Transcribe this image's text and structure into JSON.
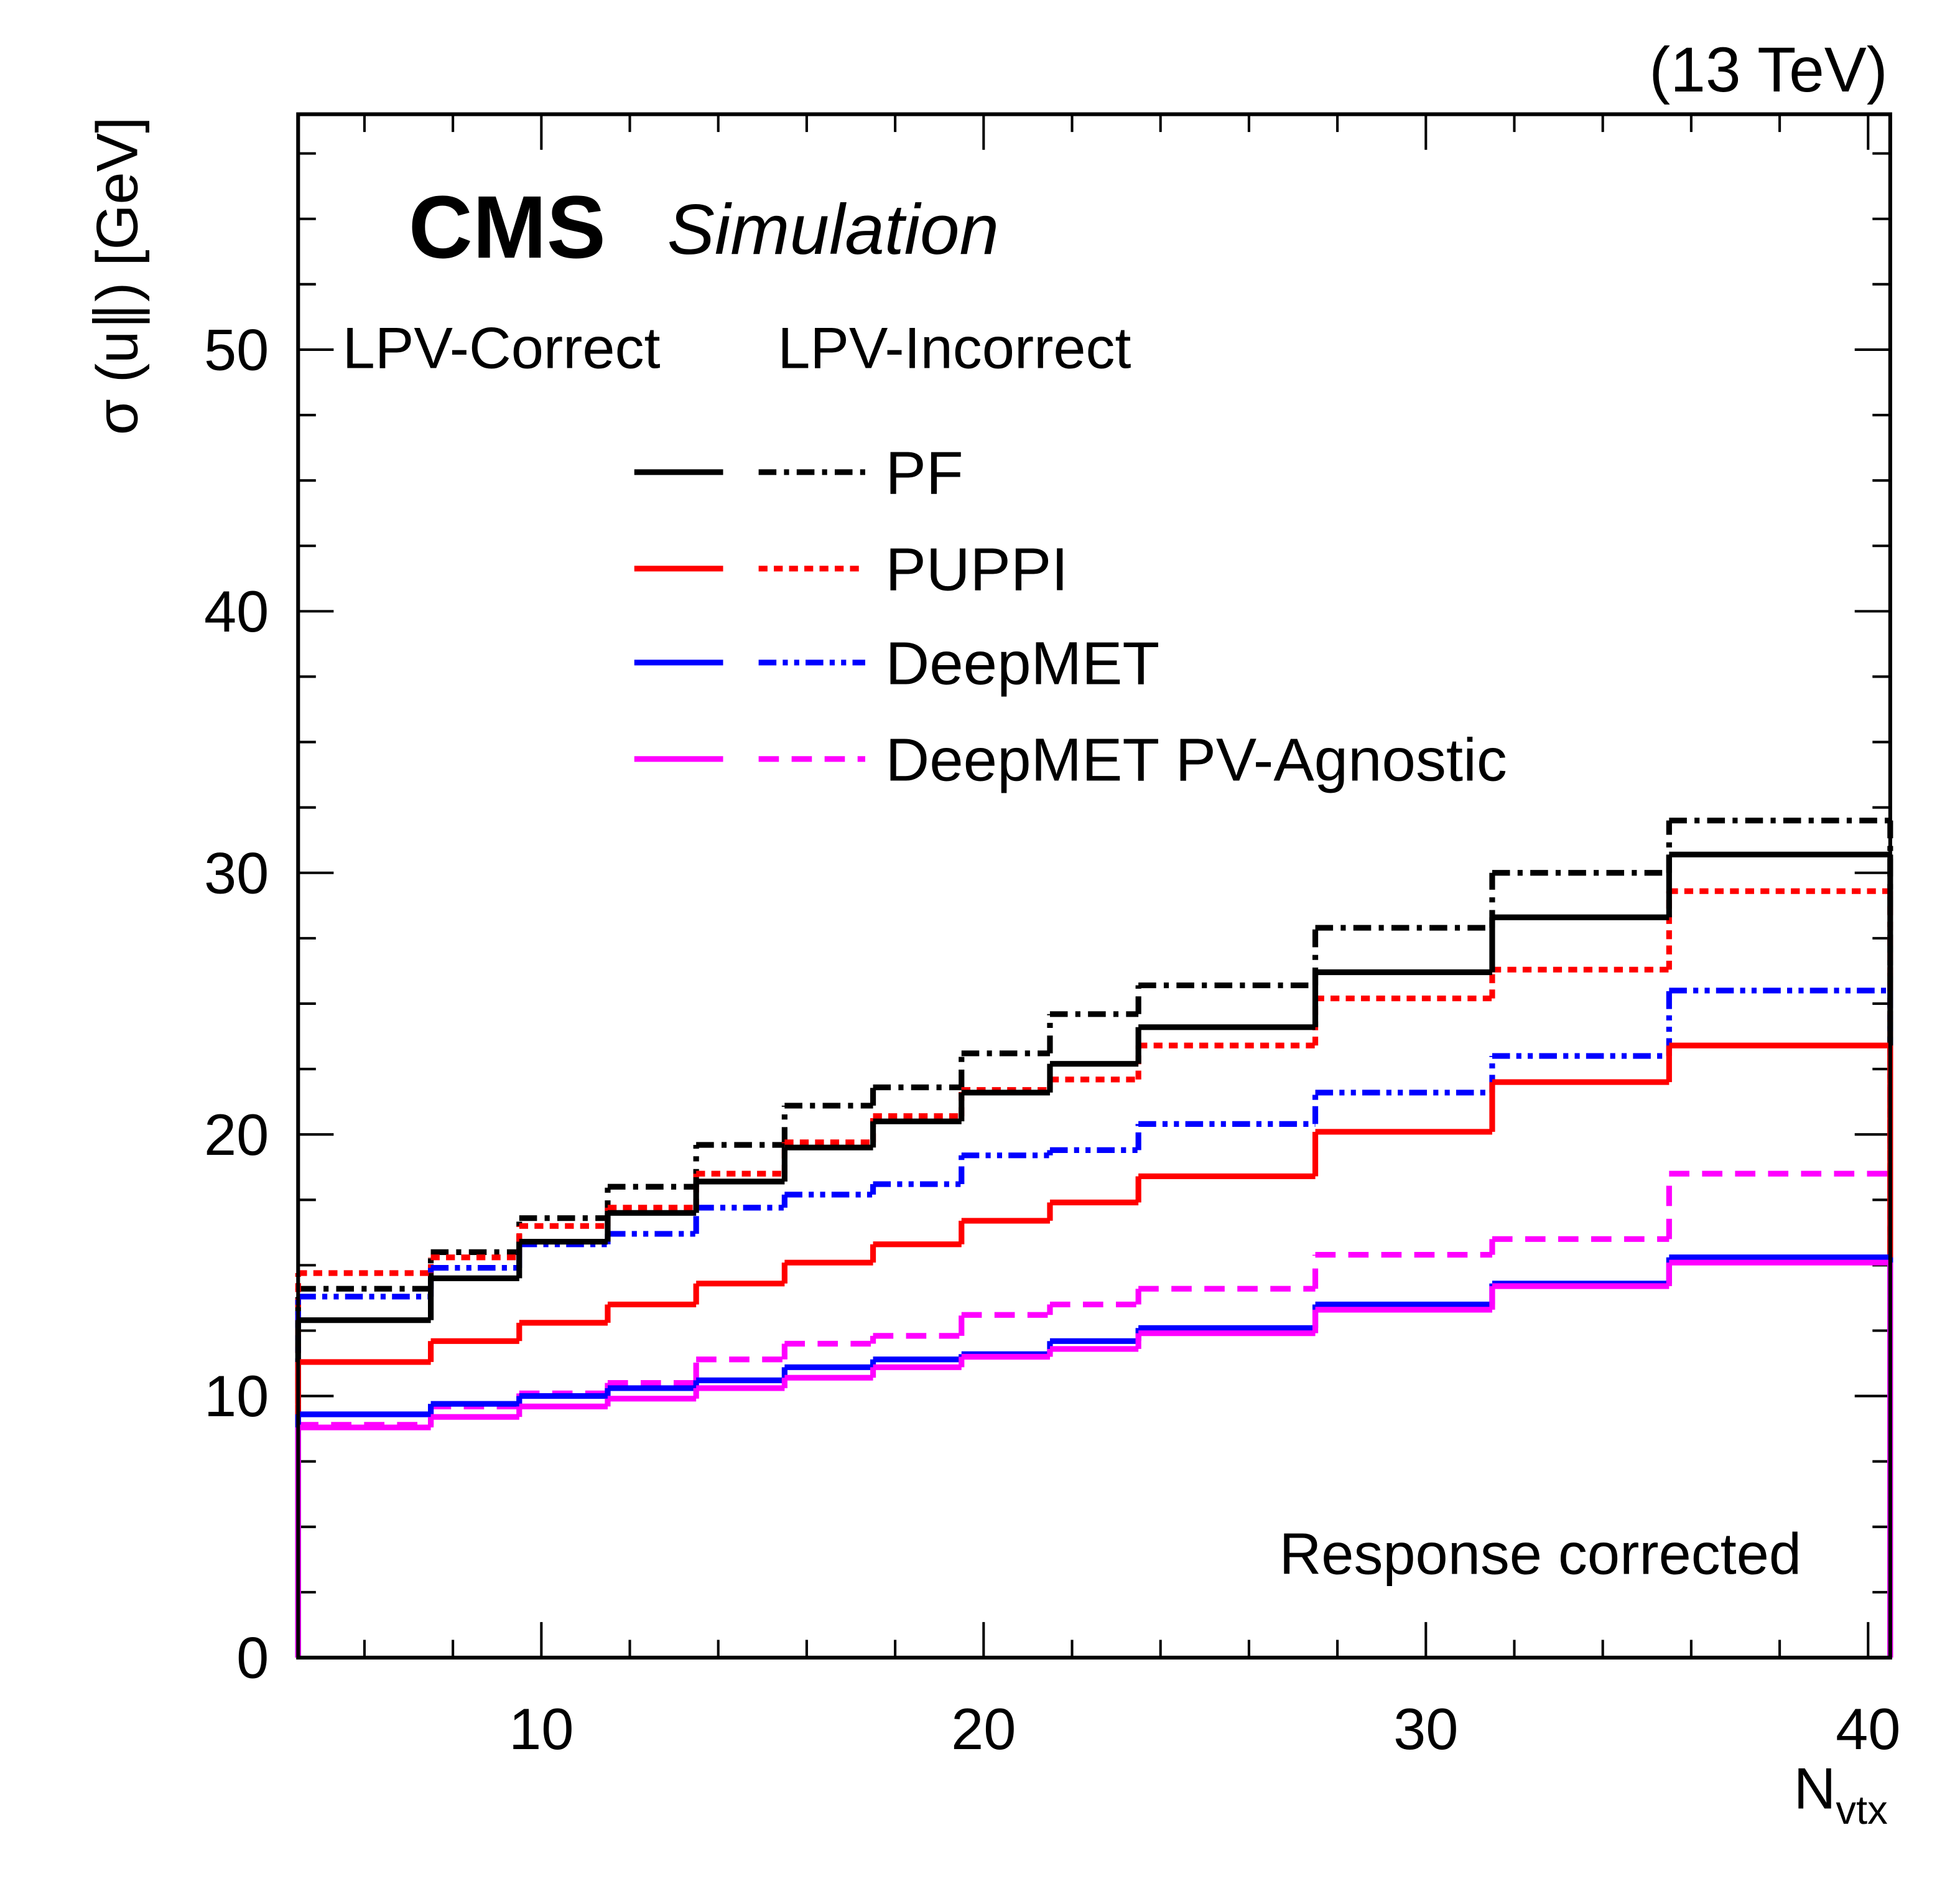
{
  "chart_data": {
    "type": "histogram",
    "experiment": "CMS",
    "status": "Simulation",
    "energy_label": "(13 TeV)",
    "annotation": "Response corrected",
    "y_label": "σ (u∥) [GeV]",
    "x_label": {
      "base": "N",
      "sub": "vtx"
    },
    "legend_columns": [
      "LPV-Correct",
      "LPV-Incorrect"
    ],
    "bins": [
      4.5,
      7.5,
      9.5,
      11.5,
      13.5,
      15.5,
      17.5,
      19.5,
      21.5,
      23.5,
      27.5,
      31.5,
      35.5,
      40.5
    ],
    "xlim": [
      4.5,
      40.5
    ],
    "xticks": [
      10,
      20,
      30,
      40
    ],
    "ylim": [
      0,
      59
    ],
    "yticks": [
      0,
      10,
      20,
      30,
      40,
      50
    ],
    "series": [
      {
        "name": "PF",
        "color": "#000000",
        "incorrect_dash": "dashdot",
        "values": [
          12.9,
          14.5,
          15.9,
          17.0,
          18.2,
          19.5,
          20.5,
          21.6,
          22.7,
          24.1,
          26.2,
          28.3,
          30.7
        ],
        "incorrect_values": [
          14.1,
          15.5,
          16.8,
          18.0,
          19.6,
          21.1,
          21.8,
          23.1,
          24.6,
          25.7,
          27.9,
          30.0,
          32.0
        ]
      },
      {
        "name": "PUPPI",
        "color": "#ff0000",
        "incorrect_dash": "dotted",
        "values": [
          11.3,
          12.1,
          12.8,
          13.5,
          14.3,
          15.1,
          15.8,
          16.7,
          17.4,
          18.4,
          20.1,
          22.0,
          23.4
        ],
        "incorrect_values": [
          14.7,
          15.3,
          16.5,
          17.2,
          18.5,
          19.7,
          20.7,
          21.7,
          22.1,
          23.4,
          25.2,
          26.3,
          29.3
        ]
      },
      {
        "name": "DeepMET",
        "color": "#0000ff",
        "incorrect_dash": "dashdotdot",
        "values": [
          9.3,
          9.7,
          10.0,
          10.3,
          10.6,
          11.1,
          11.4,
          11.6,
          12.1,
          12.6,
          13.5,
          14.3,
          15.3
        ],
        "incorrect_values": [
          13.8,
          14.9,
          15.8,
          16.2,
          17.2,
          17.7,
          18.1,
          19.2,
          19.4,
          20.4,
          21.6,
          23.0,
          25.5
        ]
      },
      {
        "name": "DeepMET PV-Agnostic",
        "color": "#ff00ff",
        "incorrect_dash": "dashed",
        "values": [
          8.8,
          9.2,
          9.6,
          9.9,
          10.3,
          10.7,
          11.1,
          11.5,
          11.8,
          12.4,
          13.3,
          14.2,
          15.1
        ],
        "incorrect_values": [
          8.9,
          9.6,
          10.1,
          10.5,
          11.4,
          12.0,
          12.3,
          13.1,
          13.5,
          14.1,
          15.4,
          16.0,
          18.5
        ]
      }
    ]
  }
}
